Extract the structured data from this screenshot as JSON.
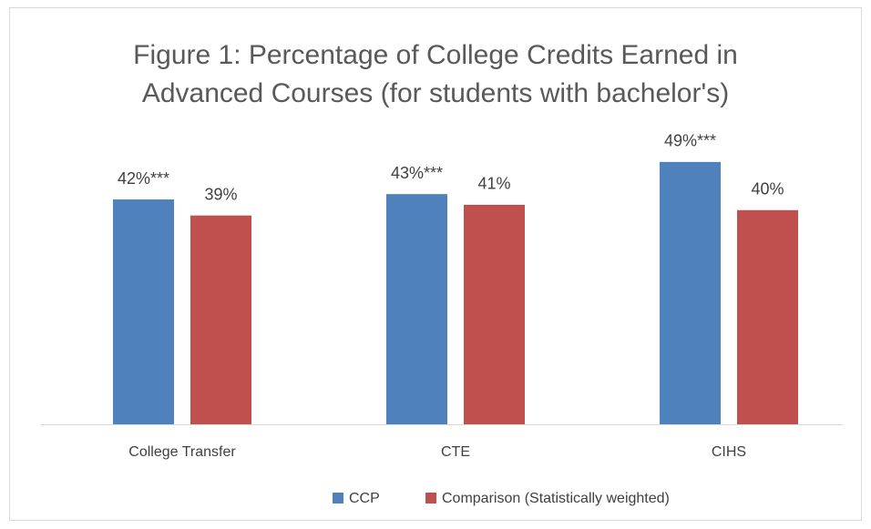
{
  "chart_data": {
    "type": "bar",
    "title": [
      "Figure 1: Percentage of College Credits Earned in",
      "Advanced Courses (for students with bachelor's)"
    ],
    "categories": [
      "College Transfer",
      "CTE",
      "CIHS"
    ],
    "series": [
      {
        "name": "CCP",
        "color": "#4f81bd",
        "values": [
          42,
          43,
          49
        ],
        "value_labels": [
          "42%***",
          "43%***",
          "49%***"
        ]
      },
      {
        "name": "Comparison (Statistically weighted)",
        "color": "#c0504d",
        "values": [
          39,
          41,
          40
        ],
        "value_labels": [
          "39%",
          "41%",
          "40%"
        ]
      }
    ],
    "legend": "bottom"
  }
}
